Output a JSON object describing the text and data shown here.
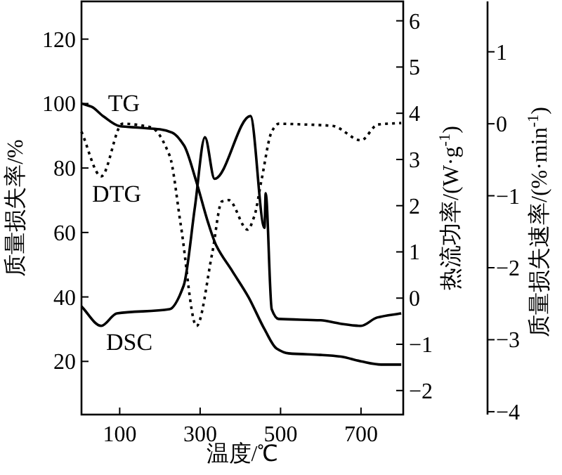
{
  "chart_data": {
    "type": "line",
    "xlabel": "温度/℃",
    "ylabel": "质量损失率/%",
    "y2label": "热流功率/(W·g$^{-1}$)",
    "y3label": "质量损失速率/(%·min$^{-1}$)",
    "xlim": [
      5,
      805
    ],
    "xticks": [
      100,
      300,
      500,
      700
    ],
    "ylim": [
      3.5,
      131.7
    ],
    "yticks": [
      20,
      40,
      60,
      80,
      100,
      120
    ],
    "y2lim": [
      -2.52,
      6.42
    ],
    "y2ticks": [
      -2,
      -1,
      0,
      1,
      2,
      3,
      4,
      5,
      6
    ],
    "y3lim": [
      -4.04,
      1.7
    ],
    "y3ticks": [
      -4,
      -3,
      -2,
      -1,
      0,
      1
    ],
    "series": [
      {
        "name": "TG",
        "color": "#000000",
        "line_style": "solid",
        "x": [
          5,
          30,
          60,
          100,
          150,
          200,
          230,
          260,
          290,
          320,
          340,
          380,
          420,
          460,
          490,
          520,
          600,
          650,
          700,
          750,
          800
        ],
        "values": [
          100,
          99,
          96,
          93,
          92.5,
          92,
          91,
          87,
          76,
          63,
          56,
          48,
          40,
          30,
          24,
          22.5,
          22,
          21.5,
          20,
          19,
          19
        ]
      },
      {
        "name": "DSC",
        "color": "#000000",
        "line_style": "solid",
        "axis": "y2",
        "x": [
          5,
          54,
          93,
          224,
          259,
          287,
          312,
          336,
          425,
          460,
          463,
          478,
          495,
          600,
          647,
          700,
          740,
          800
        ],
        "values": [
          -0.18,
          -0.6,
          -0.33,
          -0.24,
          0.27,
          1.97,
          3.48,
          2.58,
          3.94,
          1.52,
          2.27,
          -0.24,
          -0.45,
          -0.48,
          -0.55,
          -0.6,
          -0.42,
          -0.33
        ]
      },
      {
        "name": "DTG",
        "color": "#000000",
        "line_style": "dotted",
        "axis": "y3",
        "x": [
          5,
          54,
          107,
          178,
          224,
          252,
          291,
          330,
          354,
          371,
          418,
          435,
          453,
          478,
          495,
          560,
          630,
          700,
          742,
          800
        ],
        "values": [
          -0.11,
          -0.73,
          0.0,
          -0.05,
          -0.44,
          -1.41,
          -2.81,
          -1.8,
          -1.08,
          -1.06,
          -1.47,
          -1.28,
          -0.77,
          -0.11,
          0.0,
          -0.01,
          -0.03,
          -0.23,
          -0.01,
          0.01
        ]
      }
    ]
  }
}
